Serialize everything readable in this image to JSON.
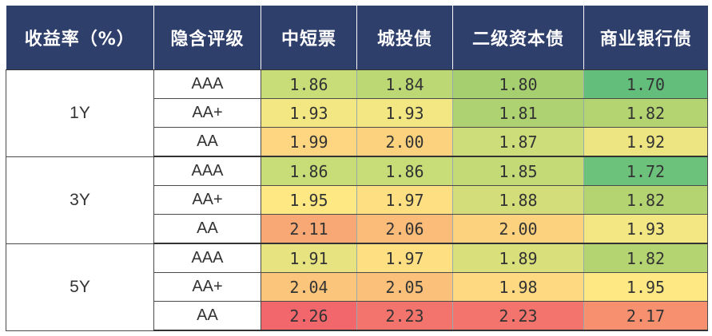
{
  "headers": [
    "收益率（%）",
    "隐含评级",
    "中短票",
    "城投债",
    "二级资本债",
    "商业银行债"
  ],
  "groups": [
    {
      "tenor": "1Y",
      "rows": [
        {
          "rating": "AAA",
          "values": [
            "1.86",
            "1.84",
            "1.80",
            "1.70"
          ],
          "colors": [
            "#c8dc78",
            "#bcd874",
            "#a6d06f",
            "#63be7b"
          ]
        },
        {
          "rating": "AA+",
          "values": [
            "1.93",
            "1.93",
            "1.81",
            "1.82"
          ],
          "colors": [
            "#f2e783",
            "#f2e783",
            "#aed271",
            "#b4d472"
          ]
        },
        {
          "rating": "AA",
          "values": [
            "1.99",
            "2.00",
            "1.87",
            "1.92"
          ],
          "colors": [
            "#fed580",
            "#fcd27e",
            "#cddd7a",
            "#ece581"
          ]
        }
      ]
    },
    {
      "tenor": "3Y",
      "rows": [
        {
          "rating": "AAA",
          "values": [
            "1.86",
            "1.86",
            "1.85",
            "1.72"
          ],
          "colors": [
            "#c8dc78",
            "#c8dc78",
            "#c3da77",
            "#6cc17b"
          ]
        },
        {
          "rating": "AA+",
          "values": [
            "1.95",
            "1.97",
            "1.88",
            "1.82"
          ],
          "colors": [
            "#fee883",
            "#fee082",
            "#d3de7a",
            "#b4d472"
          ]
        },
        {
          "rating": "AA",
          "values": [
            "2.11",
            "2.06",
            "2.00",
            "1.93"
          ],
          "colors": [
            "#f8a874",
            "#fbbc79",
            "#fcd27e",
            "#f2e783"
          ]
        }
      ]
    },
    {
      "tenor": "5Y",
      "rows": [
        {
          "rating": "AAA",
          "values": [
            "1.91",
            "1.97",
            "1.89",
            "1.82"
          ],
          "colors": [
            "#e6e380",
            "#fee082",
            "#d9df7b",
            "#b4d472"
          ]
        },
        {
          "rating": "AA+",
          "values": [
            "2.04",
            "2.05",
            "1.98",
            "1.95"
          ],
          "colors": [
            "#fcc57c",
            "#fbc07a",
            "#fed981",
            "#fee883"
          ]
        },
        {
          "rating": "AA",
          "values": [
            "2.26",
            "2.23",
            "2.23",
            "2.17"
          ],
          "colors": [
            "#f2676b",
            "#f3746c",
            "#f3746c",
            "#f6906f"
          ]
        }
      ]
    }
  ]
}
